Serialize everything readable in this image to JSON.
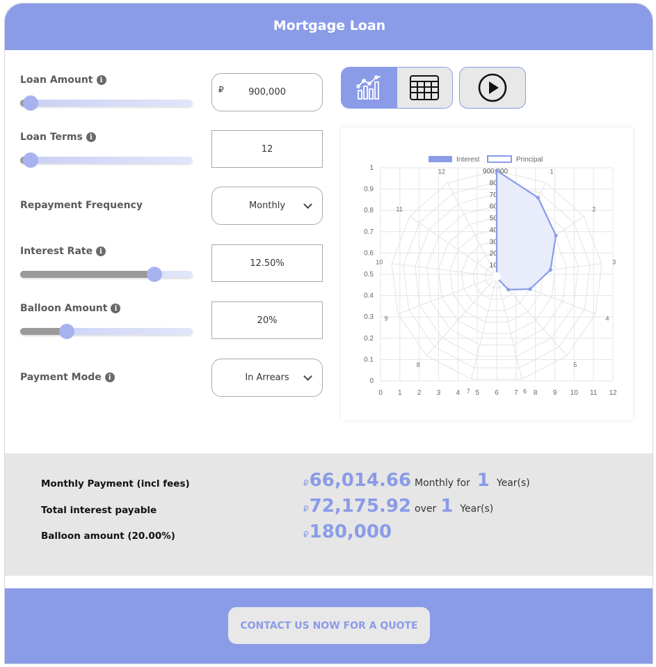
{
  "header": {
    "title": "Mortgage Loan"
  },
  "form": {
    "loan_amount": {
      "label": "Loan Amount",
      "currency": "₽",
      "value": "900,000",
      "slider_fraction": 0.06
    },
    "loan_terms": {
      "label": "Loan Terms",
      "value": "12",
      "slider_fraction": 0.06
    },
    "repayment_frequency": {
      "label": "Repayment Frequency",
      "value": "Monthly"
    },
    "interest_rate": {
      "label": "Interest Rate",
      "value": "12.50%",
      "slider_fraction": 0.78
    },
    "balloon_amount": {
      "label": "Balloon Amount",
      "value": "20%",
      "slider_fraction": 0.27
    },
    "payment_mode": {
      "label": "Payment Mode",
      "value": "In Arrears"
    }
  },
  "view_buttons": {
    "chart_icon": "chart-icon",
    "table_icon": "table-icon",
    "play_icon": "play-icon"
  },
  "chart_data": {
    "type": "radar",
    "legend": [
      "Interest",
      "Principal"
    ],
    "legend_position": "top",
    "series": [
      {
        "name": "Principal",
        "values": [
          900000,
          757000,
          612000,
          461000,
          304000,
          150000,
          15000,
          0,
          0,
          0,
          0,
          0,
          0
        ],
        "color": "#8a9be8",
        "fill": "#e9ecfb"
      }
    ],
    "categories": [
      "0",
      "1",
      "2",
      "3",
      "4",
      "5",
      "6",
      "7",
      "8",
      "9",
      "10",
      "11",
      "12"
    ],
    "radial_ticks": [
      "900,000",
      "800",
      "700",
      "600",
      "500",
      "400",
      "300",
      "200",
      "100",
      "0"
    ],
    "x_ticks": [
      "0",
      "1",
      "2",
      "3",
      "4",
      "5",
      "6",
      "7",
      "8",
      "9",
      "10",
      "11",
      "12"
    ],
    "y_ticks": [
      "0",
      "0.1",
      "0.2",
      "0.3",
      "0.4",
      "0.5",
      "0.6",
      "0.7",
      "0.8",
      "0.9",
      "1"
    ],
    "grid": true
  },
  "results": {
    "monthly_label": "Monthly Payment (incl fees)",
    "monthly_currency": "₽",
    "monthly_value": "66,014.66",
    "monthly_freq": "Monthly for",
    "monthly_years": "1",
    "monthly_unit": "Year(s)",
    "interest_label": "Total interest payable",
    "interest_currency": "₽",
    "interest_value": "72,175.92",
    "interest_over": "over",
    "interest_years": "1",
    "interest_unit": "Year(s)",
    "balloon_label": "Balloon amount (20.00%)",
    "balloon_currency": "₽",
    "balloon_value": "180,000"
  },
  "footer": {
    "cta": "CONTACT US NOW FOR A QUOTE"
  },
  "colors": {
    "accent": "#8a9be8",
    "panel": "#e6e6e6"
  }
}
